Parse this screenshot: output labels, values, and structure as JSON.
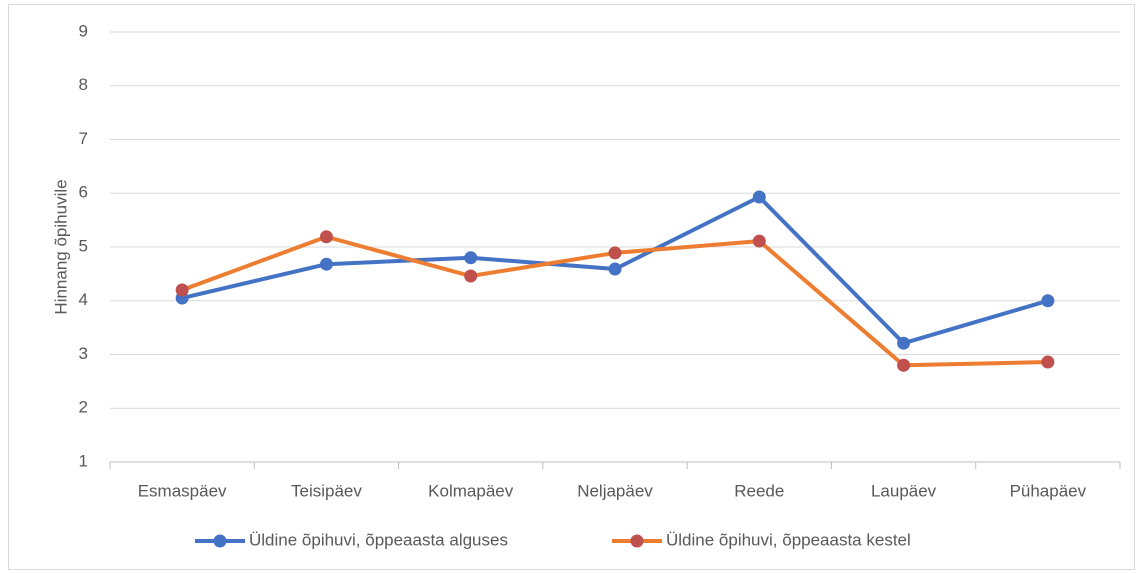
{
  "chart_data": {
    "type": "line",
    "y_label": "Hinnang õpihuvile",
    "categories": [
      "Esmaspäev",
      "Teisipäev",
      "Kolmapäev",
      "Neljapäev",
      "Reede",
      "Laupäev",
      "Pühapäev"
    ],
    "series": [
      {
        "name": "Üldine õpihuvi, õppeaasta alguses",
        "color": "#4472c4",
        "marker_color": "#4472c4",
        "values": [
          4.05,
          4.68,
          4.8,
          4.59,
          5.93,
          3.21,
          4.0
        ]
      },
      {
        "name": "Üldine õpihuvi, õppeaasta kestel",
        "color": "#ed7d31",
        "marker_color": "#c0504d",
        "values": [
          4.2,
          5.19,
          4.46,
          4.89,
          5.11,
          2.8,
          2.86
        ]
      }
    ],
    "ylim": [
      1,
      9
    ],
    "yticks": [
      1,
      2,
      3,
      4,
      5,
      6,
      7,
      8,
      9
    ],
    "grid": true,
    "legend": "bottom"
  }
}
